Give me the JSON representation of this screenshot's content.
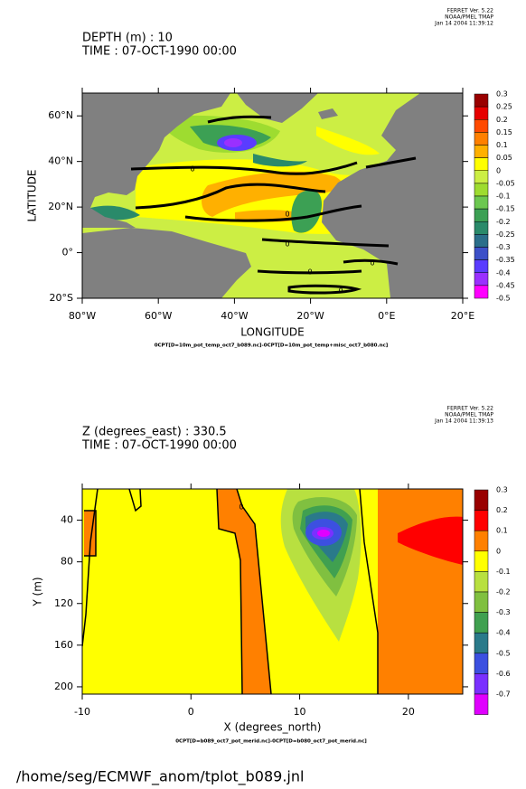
{
  "chart_data": [
    {
      "type": "contour",
      "header": [
        "FERRET Ver. 5.22",
        "NOAA/PMEL TMAP",
        "Jan 14 2004 11:39:12"
      ],
      "title_lines": [
        "DEPTH (m) : 10",
        "TIME : 07-OCT-1990 00:00"
      ],
      "xlabel": "LONGITUDE",
      "ylabel": "LATITUDE",
      "footnote": "0CPT[D=10m_pot_temp_oct7_b089.nc]-0CPT[D=10m_pot_temp+misc_oct7_b080.nc]",
      "contour_label": "0",
      "xlim": [
        -80,
        20
      ],
      "xticks": [
        {
          "value": -80,
          "label": "80°W"
        },
        {
          "value": -60,
          "label": "60°W"
        },
        {
          "value": -40,
          "label": "40°W"
        },
        {
          "value": -20,
          "label": "20°W"
        },
        {
          "value": 0,
          "label": "0°E"
        },
        {
          "value": 20,
          "label": "20°E"
        }
      ],
      "ylim": [
        -20,
        70
      ],
      "yticks": [
        {
          "value": -20,
          "label": "20°S"
        },
        {
          "value": 0,
          "label": "0°"
        },
        {
          "value": 20,
          "label": "20°N"
        },
        {
          "value": 40,
          "label": "40°N"
        },
        {
          "value": 60,
          "label": "60°N"
        }
      ],
      "levels": [
        0.3,
        0.25,
        0.2,
        0.15,
        0.1,
        0.05,
        0,
        -0.05,
        -0.1,
        -0.15,
        -0.2,
        -0.25,
        -0.3,
        -0.35,
        -0.4,
        -0.45,
        -0.5
      ],
      "colors": [
        "#990000",
        "#e60000",
        "#ff4a00",
        "#ff8000",
        "#ffb000",
        "#ffff00",
        "#ccee44",
        "#9edc30",
        "#6cc850",
        "#3ca054",
        "#2a8a6a",
        "#2a6e8a",
        "#3c50c8",
        "#5a3cff",
        "#9a30ff",
        "#ff00ff"
      ]
    },
    {
      "type": "contour",
      "header": [
        "FERRET Ver. 5.22",
        "NOAA/PMEL TMAP",
        "Jan 14 2004 11:39:13"
      ],
      "title_lines": [
        "Z (degrees_east) : 330.5",
        "TIME : 07-OCT-1990 00:00"
      ],
      "xlabel": "X (degrees_north)",
      "ylabel": "Y (m)",
      "footnote": "0CPT[D=b089_oct7_pot_merid.nc]-0CPT[D=b080_oct7_pot_merid.nc]",
      "contour_label": "0",
      "xlim": [
        -10,
        25
      ],
      "xticks": [
        -10,
        0,
        10,
        20
      ],
      "ylim": [
        10,
        207
      ],
      "y_inverted": true,
      "yticks": [
        40,
        80,
        120,
        160,
        200
      ],
      "levels": [
        0.3,
        0.2,
        0.1,
        0,
        -0.1,
        -0.2,
        -0.3,
        -0.4,
        -0.5,
        -0.6,
        -0.7
      ],
      "colors": [
        "#990000",
        "#ff0000",
        "#ff8000",
        "#ffff00",
        "#b8e040",
        "#80c040",
        "#40a050",
        "#2a7a8a",
        "#3c50e0",
        "#7a30ff",
        "#e000ff"
      ]
    }
  ],
  "footer_path": "/home/seg/ECMWF_anom/tplot_b089.jnl"
}
